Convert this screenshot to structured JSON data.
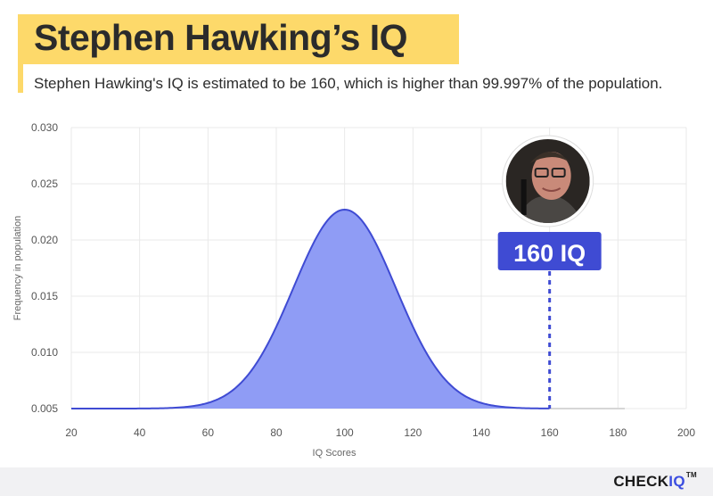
{
  "header": {
    "title": "Stephen Hawking’s IQ",
    "subtitle": "Stephen Hawking's IQ is estimated to be 160, which is higher than 99.997% of the population."
  },
  "chart_data": {
    "type": "area",
    "xlabel": "IQ Scores",
    "ylabel": "Frequency in population",
    "xlim": [
      20,
      200
    ],
    "ylim": [
      0.005,
      0.03
    ],
    "x_ticks": [
      "20",
      "40",
      "60",
      "80",
      "100",
      "120",
      "140",
      "160",
      "180",
      "200"
    ],
    "y_ticks": [
      "0.005",
      "0.010",
      "0.015",
      "0.020",
      "0.025",
      "0.030"
    ],
    "grid": true,
    "series": [
      {
        "distribution": "normal",
        "mean": 100,
        "sd": 15,
        "baseline": 0.005,
        "peak": 0.0227,
        "x_range": [
          20,
          182
        ],
        "fill_color": "#8f9cf5",
        "line_color": "#3f4bd3",
        "tail_color": "#d6d6d6"
      }
    ],
    "marker": {
      "x": 160,
      "label": "160 IQ",
      "color": "#3f4bd3",
      "image": "stephen-hawking-portrait"
    }
  },
  "footer": {
    "logo_check": "CHECK",
    "logo_iq": "IQ",
    "logo_tm": "TM"
  }
}
